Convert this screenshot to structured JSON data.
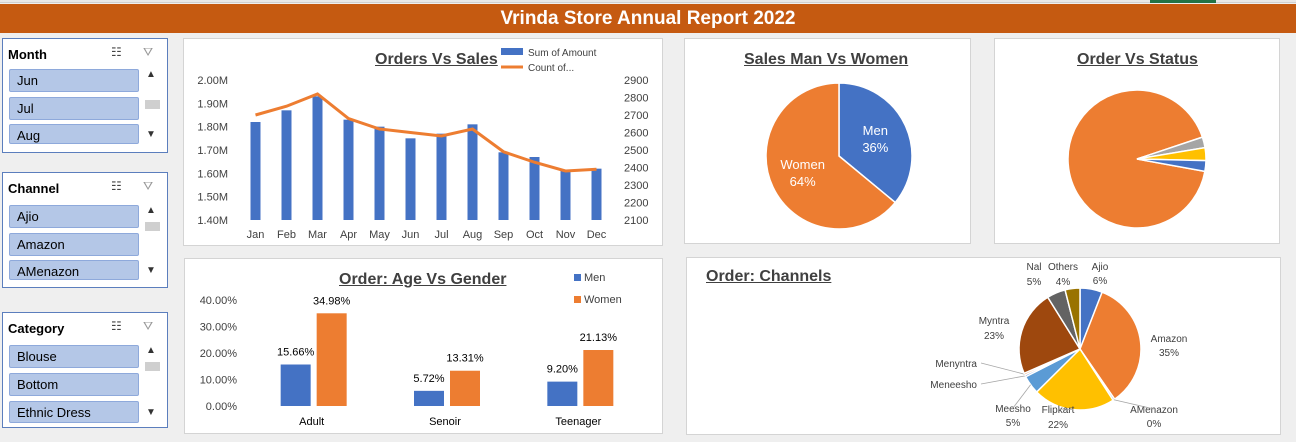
{
  "banner": {
    "title": "Vrinda Store Annual Report 2022"
  },
  "colors": {
    "blue": "#4472c4",
    "orange": "#ed7d31",
    "gray": "#a5a5a5",
    "yellow": "#ffc000",
    "brown": "#9e480e",
    "lightblue": "#5b9bd5",
    "darkgray": "#636363",
    "olive": "#997300",
    "banner": "#c55a11"
  },
  "slicers": [
    {
      "title": "Month",
      "items": [
        "Jun",
        "Jul",
        "Aug"
      ]
    },
    {
      "title": "Channel",
      "items": [
        "Ajio",
        "Amazon",
        "AMenazon"
      ]
    },
    {
      "title": "Category",
      "items": [
        "Blouse",
        "Bottom",
        "Ethnic Dress"
      ]
    }
  ],
  "icons": {
    "multiselect": "multi-select-icon",
    "clearfilter": "clear-filter-icon",
    "up": "scroll-up-icon",
    "down": "scroll-down-icon"
  },
  "chart_data": [
    {
      "type": "bar",
      "title": "Orders Vs Sales",
      "categories": [
        "Jan",
        "Feb",
        "Mar",
        "Apr",
        "May",
        "Jun",
        "Jul",
        "Aug",
        "Sep",
        "Oct",
        "Nov",
        "Dec"
      ],
      "series": [
        {
          "name": "Sum of Amount",
          "type": "bar",
          "axis": "left",
          "values": [
            1.82,
            1.87,
            1.93,
            1.83,
            1.8,
            1.75,
            1.77,
            1.81,
            1.69,
            1.67,
            1.61,
            1.62
          ]
        },
        {
          "name": "Count of...",
          "type": "line",
          "axis": "right",
          "values": [
            2700,
            2750,
            2820,
            2680,
            2620,
            2600,
            2580,
            2620,
            2490,
            2430,
            2380,
            2390
          ]
        }
      ],
      "yticks_left": [
        "1.40M",
        "1.50M",
        "1.60M",
        "1.70M",
        "1.80M",
        "1.90M",
        "2.00M"
      ],
      "ylim_left": [
        1.4,
        2.0
      ],
      "yticks_right": [
        "2100",
        "2200",
        "2300",
        "2400",
        "2500",
        "2600",
        "2700",
        "2800",
        "2900"
      ],
      "ylim_right": [
        2100,
        2900
      ],
      "legend": "top-right"
    },
    {
      "type": "pie",
      "title": "Sales Man Vs Women",
      "slices": [
        {
          "name": "Men",
          "value": 36,
          "label": "36%"
        },
        {
          "name": "Women",
          "value": 64,
          "label": "64%"
        }
      ]
    },
    {
      "type": "pie",
      "title": "Order Vs Status",
      "slices": [
        {
          "value": 92.0
        },
        {
          "value": 2.5
        },
        {
          "value": 3.0
        },
        {
          "value": 2.5
        }
      ]
    },
    {
      "type": "bar",
      "title": "Order: Age Vs Gender",
      "categories": [
        "Adult",
        "Senoir",
        "Teenager"
      ],
      "series": [
        {
          "name": "Men",
          "values": [
            15.66,
            5.72,
            9.2
          ],
          "labels": [
            "15.66%",
            "5.72%",
            "9.20%"
          ]
        },
        {
          "name": "Women",
          "values": [
            34.98,
            13.31,
            21.13
          ],
          "labels": [
            "34.98%",
            "13.31%",
            "21.13%"
          ]
        }
      ],
      "yticks": [
        "0.00%",
        "10.00%",
        "20.00%",
        "30.00%",
        "40.00%"
      ],
      "ylim": [
        0,
        40
      ],
      "legend": "top-right"
    },
    {
      "type": "pie",
      "title": "Order: Channels",
      "slices": [
        {
          "name": "Ajio",
          "value": 6,
          "label": "6%"
        },
        {
          "name": "Amazon",
          "value": 35,
          "label": "35%"
        },
        {
          "name": "AMenazon",
          "value": 0.5,
          "label": "0%"
        },
        {
          "name": "Flipkart",
          "value": 22,
          "label": "22%"
        },
        {
          "name": "Meesho",
          "value": 5,
          "label": "5%"
        },
        {
          "name": "Meneesho",
          "value": 0.5,
          "label": ""
        },
        {
          "name": "Menyntra",
          "value": 0.5,
          "label": ""
        },
        {
          "name": "Myntra",
          "value": 23,
          "label": "23%"
        },
        {
          "name": "Nal",
          "value": 5,
          "label": "5%"
        },
        {
          "name": "Others",
          "value": 4,
          "label": "4%"
        }
      ]
    }
  ]
}
